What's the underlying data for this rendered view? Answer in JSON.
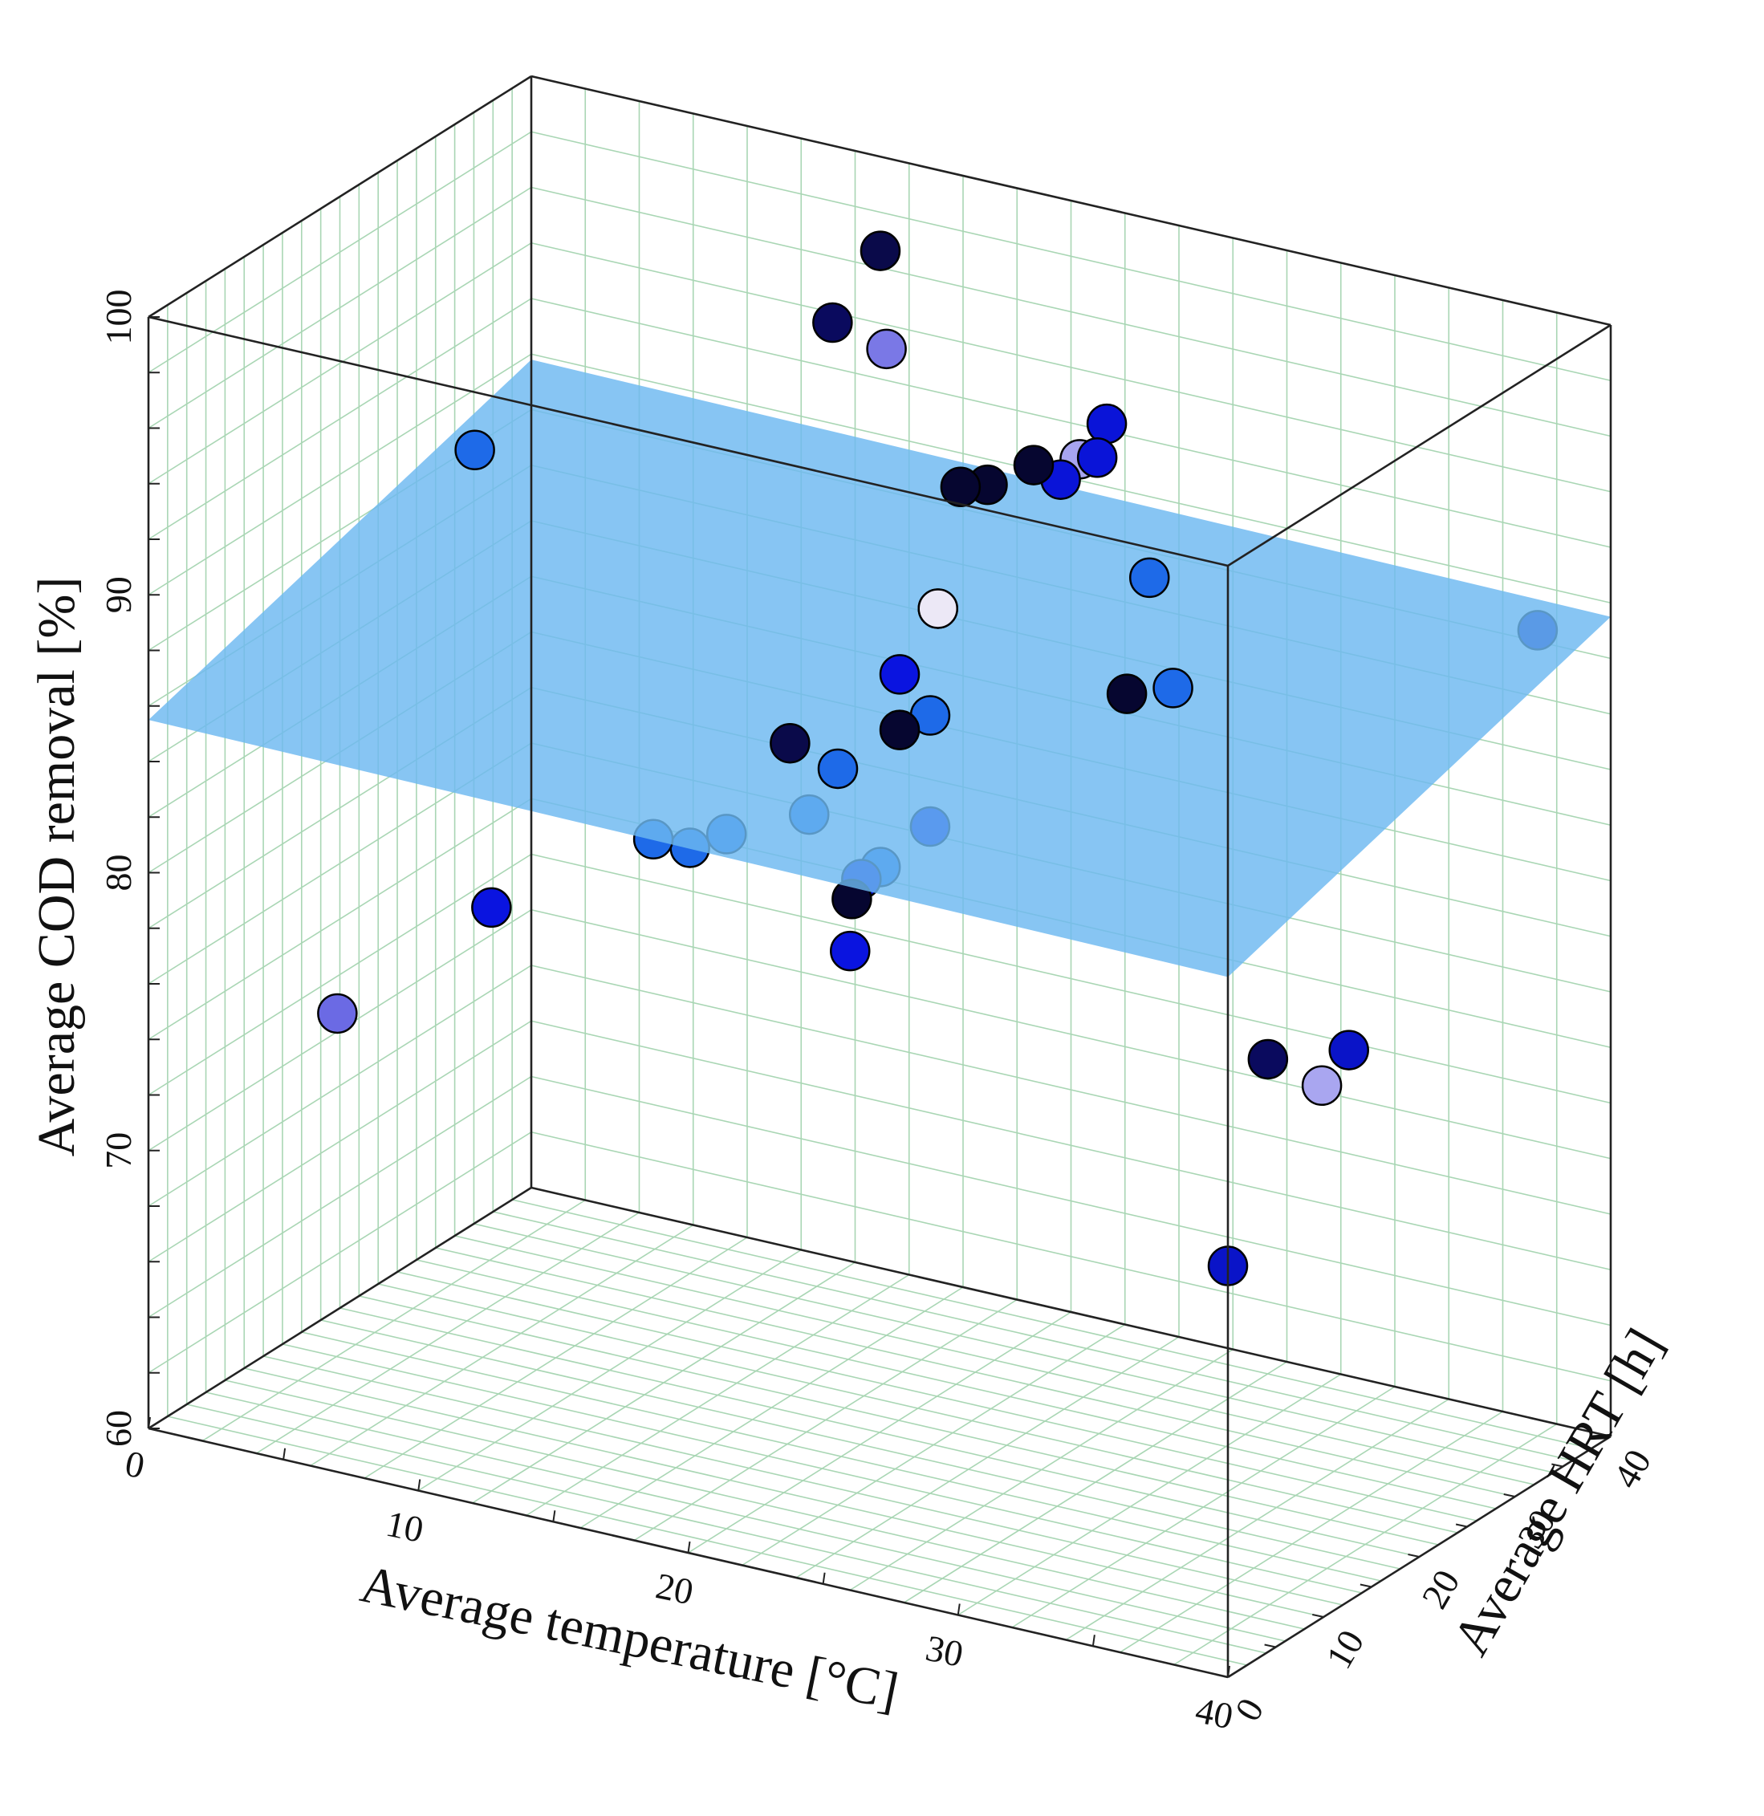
{
  "chart_data": {
    "type": "scatter",
    "title": "",
    "xlabel": "Average temperature [°C]",
    "ylabel": "Average HRT [h]",
    "zlabel": "Average COD removal [%]",
    "xlim": [
      0,
      40
    ],
    "ylim": [
      0,
      40
    ],
    "zlim": [
      60,
      100
    ],
    "xticks": [
      "0",
      "10",
      "20",
      "30",
      "40"
    ],
    "yticks": [
      "0",
      "10",
      "20",
      "30",
      "40"
    ],
    "zticks": [
      "60",
      "70",
      "80",
      "90",
      "100"
    ],
    "grid": true,
    "plane": {
      "z_at_x0_y0": 85.5,
      "z_at_x40_y0": 85.2,
      "z_at_x0_y40": 89.8,
      "z_at_x40_y40": 89.5,
      "color": "#6cb8f0"
    },
    "points": [
      {
        "x": 14,
        "y": 37,
        "z": 97.5,
        "color": "#0a0a4a"
      },
      {
        "x": 14,
        "y": 32,
        "z": 96.0,
        "color": "#0a0a5e"
      },
      {
        "x": 16,
        "y": 32,
        "z": 95.5,
        "color": "#7a78e6"
      },
      {
        "x": 27,
        "y": 24,
        "z": 97.0,
        "color": "#0a14d8"
      },
      {
        "x": 27,
        "y": 23,
        "z": 96.0,
        "color": "#0a14d8"
      },
      {
        "x": 26,
        "y": 24,
        "z": 95.5,
        "color": "#a7a4f0"
      },
      {
        "x": 26,
        "y": 22,
        "z": 95.2,
        "color": "#0a14d8"
      },
      {
        "x": 25,
        "y": 22,
        "z": 95.5,
        "color": "#060630"
      },
      {
        "x": 24,
        "y": 20,
        "z": 95.0,
        "color": "#060630"
      },
      {
        "x": 23,
        "y": 20,
        "z": 94.7,
        "color": "#060630"
      },
      {
        "x": 38,
        "y": 38,
        "z": 89.0,
        "color": "#0a14b8"
      },
      {
        "x": 25,
        "y": 12,
        "z": 92.5,
        "color": "#0a14a8"
      },
      {
        "x": 25,
        "y": 12,
        "z": 92.5,
        "color": "#ece8f6"
      },
      {
        "x": 32,
        "y": 12,
        "z": 91.0,
        "color": "#060630"
      },
      {
        "x": 25,
        "y": 8,
        "z": 91.0,
        "color": "#0a14e0"
      },
      {
        "x": 25,
        "y": 8,
        "z": 89.0,
        "color": "#060630"
      },
      {
        "x": 25,
        "y": 4,
        "z": 84.5,
        "color": "#0a14d8"
      },
      {
        "x": 25,
        "y": 3,
        "z": 84.0,
        "color": "#060630"
      },
      {
        "x": 22,
        "y": 5,
        "z": 88.5,
        "color": "#0a0a4a"
      },
      {
        "x": 24,
        "y": 14,
        "z": 84.0,
        "color": "#0a14e0"
      },
      {
        "x": 12,
        "y": 2,
        "z": 81.0,
        "color": "#0a14e0"
      },
      {
        "x": 26,
        "y": 0,
        "z": 83.0,
        "color": "#0a14e0"
      },
      {
        "x": 7,
        "y": 0,
        "z": 76.5,
        "color": "#6b6ae4"
      },
      {
        "x": 39,
        "y": 7,
        "z": 80.5,
        "color": "#0a0a5e"
      },
      {
        "x": 42,
        "y": 7,
        "z": 81.5,
        "color": "#0a14c8"
      },
      {
        "x": 41,
        "y": 7,
        "z": 80.0,
        "color": "#a9a6f0"
      },
      {
        "x": 40,
        "y": 0,
        "z": 74.8,
        "color": "#0a14c8"
      },
      {
        "x": 30,
        "y": 20,
        "z": 93.0,
        "color": "#1e6ae8"
      },
      {
        "x": 33,
        "y": 14,
        "z": 91.0,
        "color": "#1e6ae8"
      },
      {
        "x": 5,
        "y": 20,
        "z": 92.0,
        "color": "#1e6ae8"
      },
      {
        "x": 24,
        "y": 14,
        "z": 88.0,
        "color": "#1e6ae8"
      },
      {
        "x": 22,
        "y": 10,
        "z": 86.5,
        "color": "#1e6ae8"
      },
      {
        "x": 22,
        "y": 7,
        "z": 85.5,
        "color": "#1e6ae8"
      },
      {
        "x": 20,
        "y": 4,
        "z": 85.0,
        "color": "#1e6ae8"
      },
      {
        "x": 19,
        "y": 3,
        "z": 84.5,
        "color": "#1e6ae8"
      },
      {
        "x": 18,
        "y": 2,
        "z": 84.8,
        "color": "#1e6ae8"
      },
      {
        "x": 25,
        "y": 6,
        "z": 84.5,
        "color": "#1e6ae8"
      }
    ]
  }
}
